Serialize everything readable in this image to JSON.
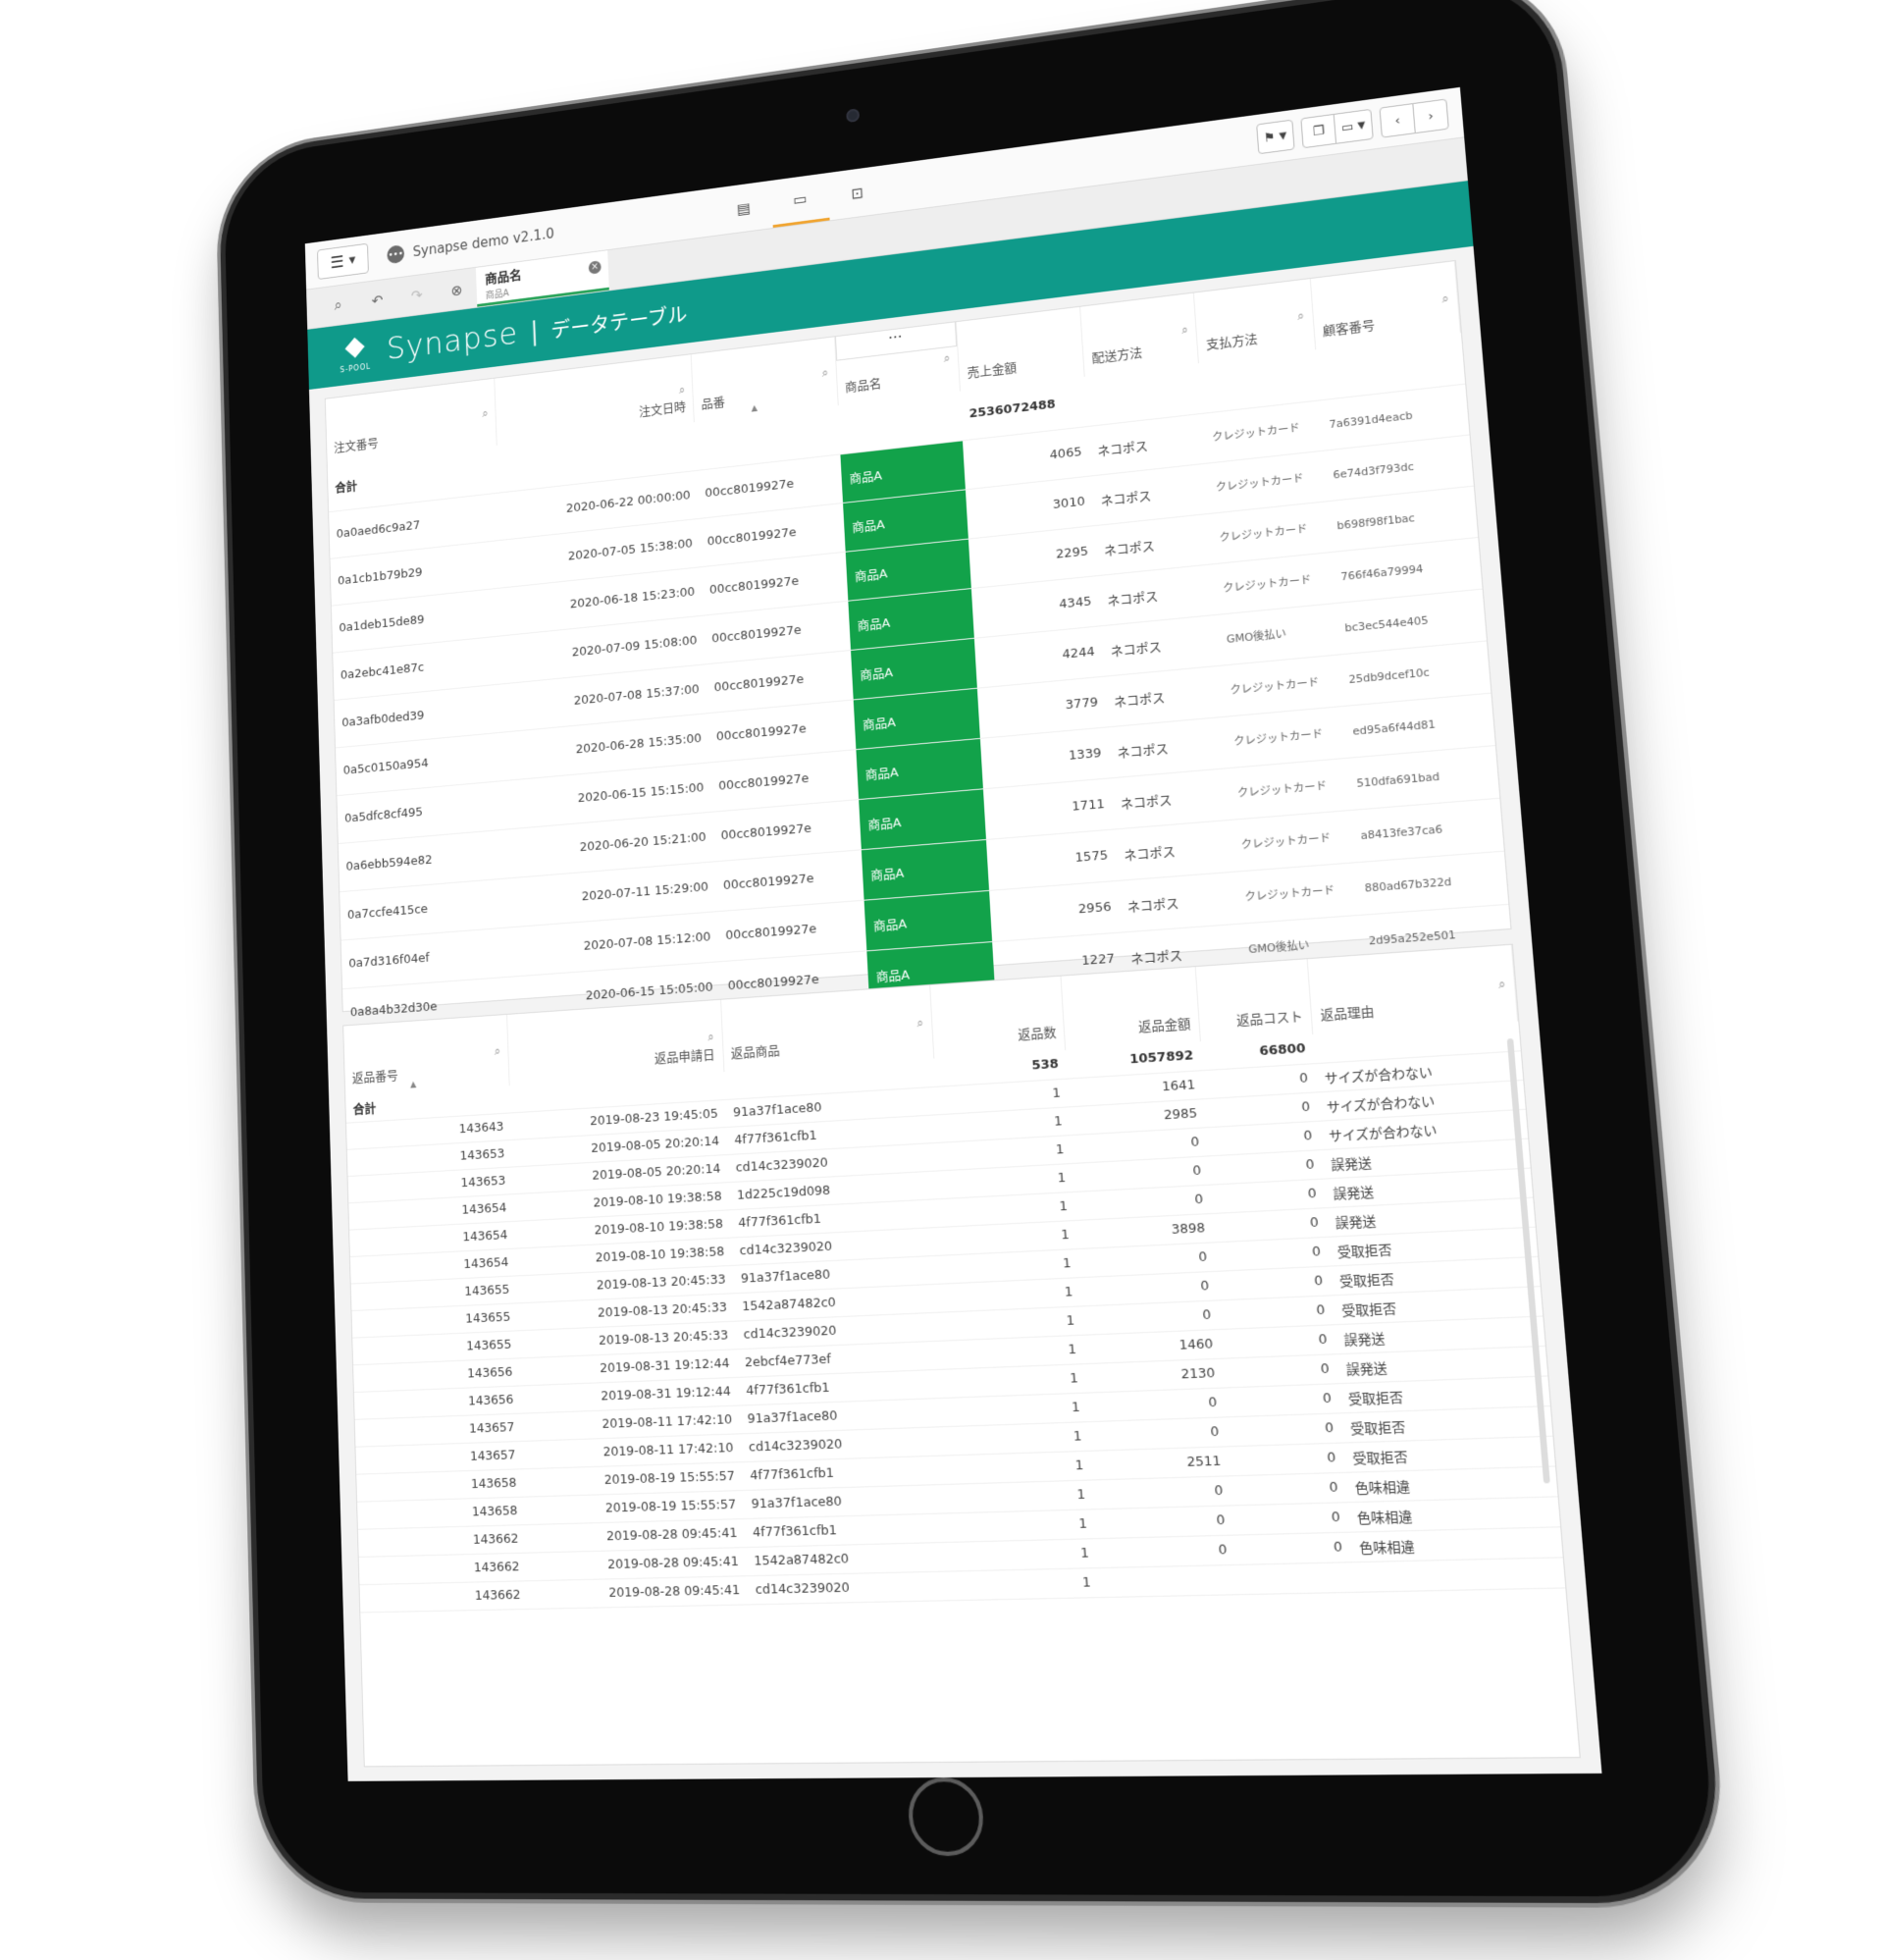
{
  "app": {
    "title": "Synapse demo v2.1.0",
    "view_tabs": [
      "table-view",
      "screen-view",
      "presentation-view"
    ],
    "right_tools": [
      "bookmark",
      "window",
      "display",
      "prev",
      "next"
    ]
  },
  "filterbar": {
    "icons": [
      "zoom-select-icon",
      "back-filter-icon",
      "forward-filter-icon",
      "clear-filter-icon"
    ],
    "chip": {
      "title": "商品名",
      "value": "商品A"
    }
  },
  "brand": {
    "logo_sub": "S-POOL",
    "name": "Synapse",
    "separator": "|",
    "page": "データテーブル"
  },
  "orders": {
    "columns": [
      "注文番号",
      "注文日時",
      "品番",
      "商品名",
      "売上金額",
      "配送方法",
      "支払方法",
      "顧客番号"
    ],
    "column_menu": "...",
    "total_label": "合計",
    "total_sales": "2536072488",
    "rows": [
      [
        "0a0aed6c9a27",
        "2020-06-22 00:00:00",
        "00cc8019927e",
        "商品A",
        "4065",
        "ネコポス",
        "クレジットカード",
        "7a6391d4eacb"
      ],
      [
        "0a1cb1b79b29",
        "2020-07-05 15:38:00",
        "00cc8019927e",
        "商品A",
        "3010",
        "ネコポス",
        "クレジットカード",
        "6e74d3f793dc"
      ],
      [
        "0a1deb15de89",
        "2020-06-18 15:23:00",
        "00cc8019927e",
        "商品A",
        "2295",
        "ネコポス",
        "クレジットカード",
        "b698f98f1bac"
      ],
      [
        "0a2ebc41e87c",
        "2020-07-09 15:08:00",
        "00cc8019927e",
        "商品A",
        "4345",
        "ネコポス",
        "クレジットカード",
        "766f46a79994"
      ],
      [
        "0a3afb0ded39",
        "2020-07-08 15:37:00",
        "00cc8019927e",
        "商品A",
        "4244",
        "ネコポス",
        "GMO後払い",
        "bc3ec544e405"
      ],
      [
        "0a5c0150a954",
        "2020-06-28 15:35:00",
        "00cc8019927e",
        "商品A",
        "3779",
        "ネコポス",
        "クレジットカード",
        "25db9dcef10c"
      ],
      [
        "0a5dfc8cf495",
        "2020-06-15 15:15:00",
        "00cc8019927e",
        "商品A",
        "1339",
        "ネコポス",
        "クレジットカード",
        "ed95a6f44d81"
      ],
      [
        "0a6ebb594e82",
        "2020-06-20 15:21:00",
        "00cc8019927e",
        "商品A",
        "1711",
        "ネコポス",
        "クレジットカード",
        "510dfa691bad"
      ],
      [
        "0a7ccfe415ce",
        "2020-07-11 15:29:00",
        "00cc8019927e",
        "商品A",
        "1575",
        "ネコポス",
        "クレジットカード",
        "a8413fe37ca6"
      ],
      [
        "0a7d316f04ef",
        "2020-07-08 15:12:00",
        "00cc8019927e",
        "商品A",
        "2956",
        "ネコポス",
        "クレジットカード",
        "880ad67b322d"
      ],
      [
        "0a8a4b32d30e",
        "2020-06-15 15:05:00",
        "00cc8019927e",
        "商品A",
        "1227",
        "ネコポス",
        "GMO後払い",
        "2d95a252e501"
      ]
    ]
  },
  "returns": {
    "columns": [
      "返品番号",
      "返品申請日",
      "返品商品",
      "返品数",
      "返品金額",
      "返品コスト",
      "返品理由"
    ],
    "total_label": "合計",
    "totals": {
      "count": "538",
      "amount": "1057892",
      "cost": "66800"
    },
    "rows": [
      [
        "143643",
        "2019-08-23 19:45:05",
        "91a37f1ace80",
        "1",
        "1641",
        "0",
        "サイズが合わない"
      ],
      [
        "143653",
        "2019-08-05 20:20:14",
        "4f77f361cfb1",
        "1",
        "2985",
        "0",
        "サイズが合わない"
      ],
      [
        "143653",
        "2019-08-05 20:20:14",
        "cd14c3239020",
        "1",
        "0",
        "0",
        "サイズが合わない"
      ],
      [
        "143654",
        "2019-08-10 19:38:58",
        "1d225c19d098",
        "1",
        "0",
        "0",
        "誤発送"
      ],
      [
        "143654",
        "2019-08-10 19:38:58",
        "4f77f361cfb1",
        "1",
        "0",
        "0",
        "誤発送"
      ],
      [
        "143654",
        "2019-08-10 19:38:58",
        "cd14c3239020",
        "1",
        "3898",
        "0",
        "誤発送"
      ],
      [
        "143655",
        "2019-08-13 20:45:33",
        "91a37f1ace80",
        "1",
        "0",
        "0",
        "受取拒否"
      ],
      [
        "143655",
        "2019-08-13 20:45:33",
        "1542a87482c0",
        "1",
        "0",
        "0",
        "受取拒否"
      ],
      [
        "143655",
        "2019-08-13 20:45:33",
        "cd14c3239020",
        "1",
        "0",
        "0",
        "受取拒否"
      ],
      [
        "143656",
        "2019-08-31 19:12:44",
        "2ebcf4e773ef",
        "1",
        "1460",
        "0",
        "誤発送"
      ],
      [
        "143656",
        "2019-08-31 19:12:44",
        "4f77f361cfb1",
        "1",
        "2130",
        "0",
        "誤発送"
      ],
      [
        "143657",
        "2019-08-11 17:42:10",
        "91a37f1ace80",
        "1",
        "0",
        "0",
        "受取拒否"
      ],
      [
        "143657",
        "2019-08-11 17:42:10",
        "cd14c3239020",
        "1",
        "0",
        "0",
        "受取拒否"
      ],
      [
        "143658",
        "2019-08-19 15:55:57",
        "4f77f361cfb1",
        "1",
        "2511",
        "0",
        "受取拒否"
      ],
      [
        "143658",
        "2019-08-19 15:55:57",
        "91a37f1ace80",
        "1",
        "0",
        "0",
        "色味相違"
      ],
      [
        "143662",
        "2019-08-28 09:45:41",
        "4f77f361cfb1",
        "1",
        "0",
        "0",
        "色味相違"
      ],
      [
        "143662",
        "2019-08-28 09:45:41",
        "1542a87482c0",
        "1",
        "0",
        "0",
        "色味相違"
      ],
      [
        "143662",
        "2019-08-28 09:45:41",
        "cd14c3239020",
        "1",
        "",
        "",
        ""
      ]
    ]
  },
  "colors": {
    "teal": "#0f9a8a",
    "highlight_green": "#12a24a",
    "tab_accent": "#f0a430"
  }
}
